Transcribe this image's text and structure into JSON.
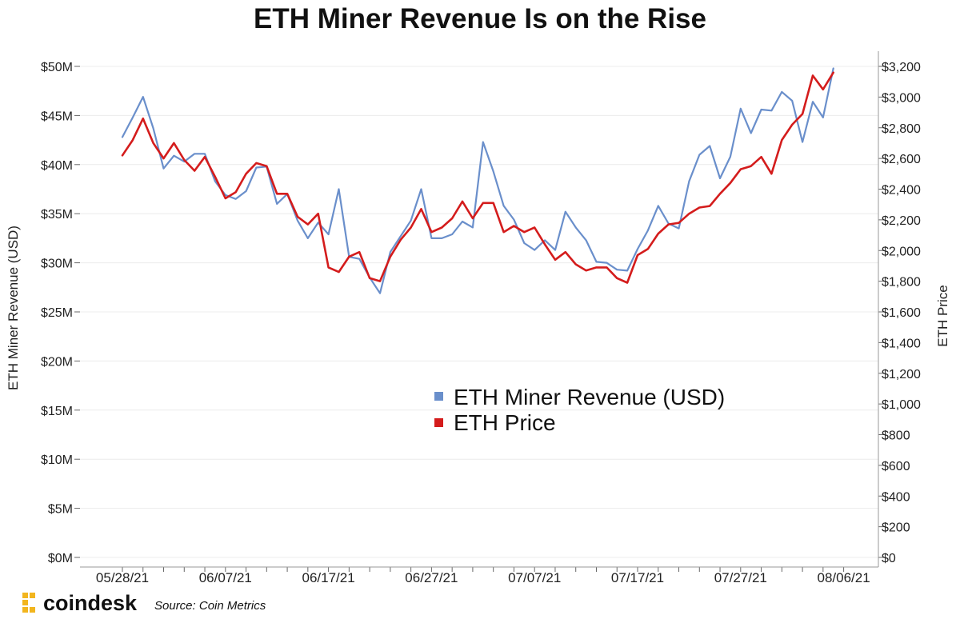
{
  "chart_data": {
    "type": "line",
    "title": "ETH Miner Revenue Is on the Rise",
    "y_left_label": "ETH Miner Revenue (USD)",
    "y_right_label": "ETH Price",
    "y_left_range": [
      0,
      50000000
    ],
    "y_right_range": [
      0,
      3200
    ],
    "y_left_ticks": [
      "$0M",
      "$5M",
      "$10M",
      "$15M",
      "$20M",
      "$25M",
      "$30M",
      "$35M",
      "$40M",
      "$45M",
      "$50M"
    ],
    "y_right_ticks": [
      "$0",
      "$200",
      "$400",
      "$600",
      "$800",
      "$1,000",
      "$1,200",
      "$1,400",
      "$1,600",
      "$1,800",
      "$2,000",
      "$2,200",
      "$2,400",
      "$2,600",
      "$2,800",
      "$3,000",
      "$3,200"
    ],
    "x_tick_labels": [
      "05/28/21",
      "06/07/21",
      "06/17/21",
      "06/27/21",
      "07/07/21",
      "07/17/21",
      "07/27/21",
      "08/06/21"
    ],
    "x_tick_days": [
      0,
      10,
      20,
      30,
      40,
      50,
      60,
      70
    ],
    "grid": "horizontal",
    "legend_placement": "center-right",
    "series": [
      {
        "name": "ETH Miner Revenue (USD)",
        "axis": "left",
        "color": "#6a8fcb",
        "values": [
          42.8,
          44.8,
          46.9,
          43.7,
          39.6,
          40.9,
          40.3,
          41.1,
          41.1,
          38.3,
          36.9,
          36.5,
          37.3,
          39.7,
          39.8,
          36.0,
          37.0,
          34.3,
          32.5,
          34.1,
          32.9,
          37.5,
          30.6,
          30.4,
          28.5,
          26.9,
          31.1,
          32.7,
          34.3,
          37.5,
          32.5,
          32.5,
          32.9,
          34.2,
          33.6,
          42.3,
          39.3,
          35.8,
          34.4,
          32.0,
          31.3,
          32.3,
          31.3,
          35.2,
          33.6,
          32.3,
          30.1,
          30.0,
          29.3,
          29.2,
          31.4,
          33.3,
          35.8,
          34.0,
          33.5,
          38.3,
          41.0,
          41.9,
          38.6,
          40.8,
          45.7,
          43.2,
          45.6,
          45.5,
          47.4,
          46.5,
          42.3,
          46.4,
          44.8,
          49.8
        ]
      },
      {
        "name": "ETH Price",
        "axis": "right",
        "color": "#d41c1c",
        "values": [
          2620,
          2720,
          2860,
          2700,
          2600,
          2700,
          2590,
          2520,
          2610,
          2480,
          2340,
          2380,
          2500,
          2570,
          2550,
          2370,
          2370,
          2220,
          2170,
          2240,
          1890,
          1860,
          1960,
          1990,
          1820,
          1800,
          1960,
          2070,
          2150,
          2270,
          2120,
          2150,
          2210,
          2320,
          2210,
          2310,
          2310,
          2120,
          2160,
          2120,
          2150,
          2040,
          1940,
          1990,
          1910,
          1870,
          1890,
          1890,
          1820,
          1790,
          1970,
          2010,
          2110,
          2170,
          2180,
          2240,
          2280,
          2290,
          2370,
          2440,
          2530,
          2550,
          2610,
          2500,
          2720,
          2820,
          2890,
          3140,
          3050,
          3160
        ]
      }
    ]
  },
  "footer": {
    "brand": "coindesk",
    "source": "Source: Coin Metrics"
  }
}
